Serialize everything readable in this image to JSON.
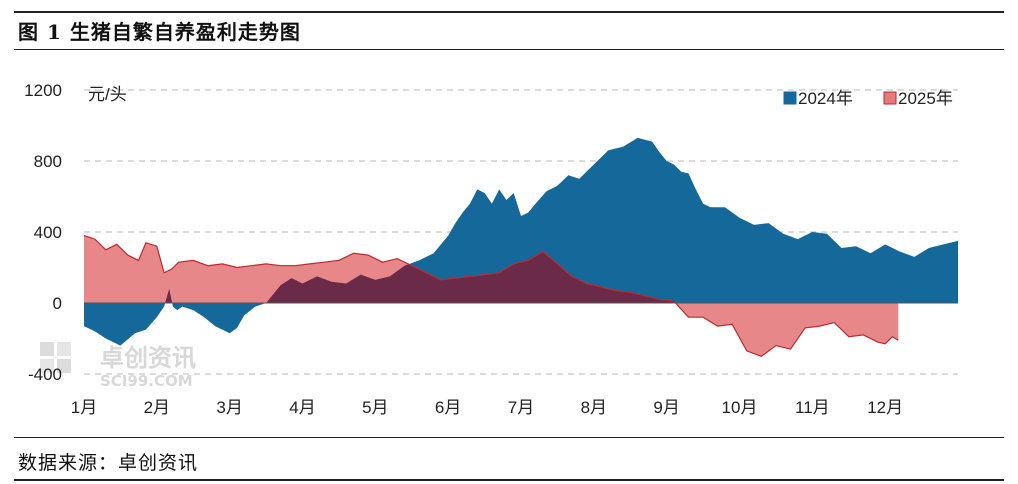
{
  "header": {
    "title": "图 1 生猪自繁自养盈利走势图"
  },
  "footer": {
    "source": "数据来源：卓创资讯"
  },
  "watermark": {
    "cn": "卓创资讯",
    "en": "SCI99.COM"
  },
  "colors": {
    "series_2024": "#14699a",
    "series_2025": "#e57a7c",
    "overlap": "#6b2b48",
    "grid": "#b8b8b8"
  },
  "chart_data": {
    "type": "area",
    "unit_label": "元/头",
    "ylim": [
      -400,
      1200
    ],
    "yticks": [
      -400,
      0,
      400,
      800,
      1200
    ],
    "grid": "horizontal-dashed",
    "legend_position": "top-right",
    "x_tick_labels": [
      "1月",
      "2月",
      "3月",
      "4月",
      "5月",
      "6月",
      "7月",
      "8月",
      "9月",
      "10月",
      "11月",
      "12月"
    ],
    "series": [
      {
        "name": "2024年",
        "x": [
          0,
          0.15,
          0.3,
          0.5,
          0.7,
          0.85,
          1.0,
          1.1,
          1.17,
          1.22,
          1.28,
          1.35,
          1.5,
          1.65,
          1.8,
          2.0,
          2.1,
          2.2,
          2.35,
          2.5,
          2.7,
          2.85,
          3.0,
          3.2,
          3.4,
          3.6,
          3.8,
          4.0,
          4.2,
          4.4,
          4.6,
          4.8,
          5.0,
          5.1,
          5.2,
          5.3,
          5.4,
          5.5,
          5.6,
          5.7,
          5.8,
          5.9,
          6.0,
          6.1,
          6.2,
          6.35,
          6.5,
          6.65,
          6.8,
          7.0,
          7.2,
          7.4,
          7.6,
          7.8,
          7.9,
          8.0,
          8.1,
          8.2,
          8.3,
          8.4,
          8.5,
          8.6,
          8.8,
          9.0,
          9.2,
          9.4,
          9.6,
          9.8,
          10.0,
          10.2,
          10.4,
          10.6,
          10.8,
          11.0,
          11.2,
          11.4,
          11.6,
          11.8,
          12.0
        ],
        "values": [
          -130,
          -160,
          -200,
          -240,
          -170,
          -150,
          -80,
          -20,
          80,
          -20,
          -40,
          -20,
          -40,
          -80,
          -130,
          -170,
          -140,
          -70,
          -20,
          0,
          100,
          140,
          110,
          150,
          120,
          110,
          160,
          130,
          150,
          210,
          240,
          280,
          380,
          450,
          510,
          560,
          640,
          620,
          560,
          640,
          580,
          620,
          490,
          510,
          560,
          630,
          660,
          720,
          700,
          780,
          860,
          880,
          930,
          910,
          850,
          800,
          780,
          740,
          730,
          640,
          560,
          540,
          540,
          480,
          440,
          450,
          390,
          360,
          400,
          390,
          310,
          320,
          280,
          330,
          290,
          260,
          310,
          330,
          350
        ],
        "color": "#14699a"
      },
      {
        "name": "2025年",
        "x": [
          0,
          0.15,
          0.3,
          0.45,
          0.6,
          0.75,
          0.85,
          1.0,
          1.1,
          1.2,
          1.3,
          1.5,
          1.7,
          1.9,
          2.1,
          2.3,
          2.5,
          2.7,
          2.9,
          3.1,
          3.3,
          3.5,
          3.7,
          3.9,
          4.1,
          4.3,
          4.5,
          4.7,
          4.9,
          5.1,
          5.3,
          5.5,
          5.7,
          5.9,
          6.1,
          6.3,
          6.5,
          6.7,
          6.9,
          7.1,
          7.3,
          7.5,
          7.7,
          7.9,
          8.1,
          8.3,
          8.5,
          8.7,
          8.9,
          9.1,
          9.3,
          9.5,
          9.7,
          9.9,
          10.1,
          10.3,
          10.5,
          10.7,
          10.9,
          11.0,
          11.1,
          11.18
        ],
        "values": [
          380,
          360,
          300,
          330,
          270,
          240,
          340,
          320,
          170,
          190,
          230,
          240,
          210,
          220,
          200,
          210,
          220,
          210,
          210,
          220,
          230,
          240,
          280,
          270,
          230,
          250,
          210,
          170,
          130,
          140,
          150,
          160,
          170,
          220,
          240,
          290,
          220,
          150,
          110,
          90,
          70,
          60,
          40,
          20,
          10,
          -80,
          -80,
          -130,
          -120,
          -270,
          -300,
          -240,
          -260,
          -140,
          -130,
          -110,
          -190,
          -180,
          -220,
          -230,
          -190,
          -210
        ],
        "color": "#e57a7c"
      }
    ]
  }
}
